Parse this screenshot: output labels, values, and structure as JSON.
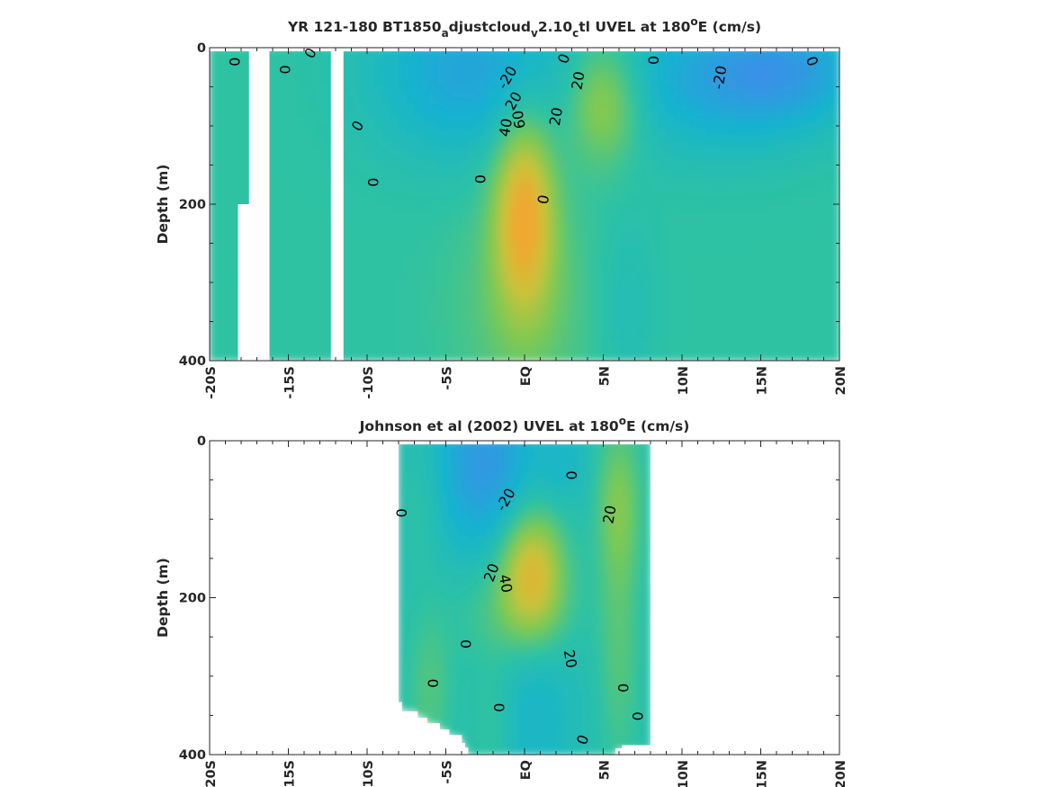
{
  "chart_data": [
    {
      "type": "heatmap",
      "title_parts": [
        {
          "text": "YR 121-180 BT1850",
          "shift": "none"
        },
        {
          "text": "a",
          "shift": "sub"
        },
        {
          "text": "djustcloud",
          "shift": "none"
        },
        {
          "text": "v",
          "shift": "sub"
        },
        {
          "text": "2.10",
          "shift": "none"
        },
        {
          "text": "c",
          "shift": "sub"
        },
        {
          "text": "tl UVEL at 180",
          "shift": "none"
        },
        {
          "text": "o",
          "shift": "super"
        },
        {
          "text": "E (cm/s)",
          "shift": "none"
        }
      ],
      "xlabel": "",
      "ylabel": "Depth (m)",
      "xlim": [
        -20,
        20
      ],
      "ylim": [
        0,
        400
      ],
      "y_reversed": true,
      "x_ticks": [
        -20,
        -15,
        -10,
        -5,
        0,
        5,
        10,
        15,
        20
      ],
      "x_tick_labels": [
        "-20S",
        "-15S",
        "-10S",
        "-5S",
        "EQ",
        "5N",
        "10N",
        "15N",
        "20N"
      ],
      "y_ticks": [
        0,
        200,
        400
      ],
      "y_tick_labels": [
        "0",
        "200",
        "400"
      ],
      "colormap": [
        "#3a8fe8",
        "#16b3cf",
        "#2ec2a3",
        "#7cc954",
        "#c8c33a",
        "#f0a830"
      ],
      "color_range": [
        -40,
        60
      ],
      "fields": {
        "background": 0,
        "features": [
          {
            "kind": "westward_jet",
            "x": -3.5,
            "y": 30,
            "sx": 4.5,
            "sy": 80,
            "value": -28
          },
          {
            "kind": "westward_jet",
            "x": 12,
            "y": 40,
            "sx": 5,
            "sy": 70,
            "value": -24
          },
          {
            "kind": "westward_jet",
            "x": 17,
            "y": 30,
            "sx": 3.5,
            "sy": 50,
            "value": -22
          },
          {
            "kind": "undercurrent",
            "x": 0,
            "y": 210,
            "sx": 1.3,
            "sy": 85,
            "value": 58
          },
          {
            "kind": "ncc",
            "x": 5,
            "y": 70,
            "sx": 1.6,
            "sy": 55,
            "value": 34
          },
          {
            "kind": "subsurface_east",
            "x": 0,
            "y": 330,
            "sx": 3,
            "sy": 100,
            "value": 14
          },
          {
            "kind": "subsurface_west",
            "x": 6.5,
            "y": 330,
            "sx": 1.4,
            "sy": 80,
            "value": -9
          }
        ],
        "masks": [
          {
            "x0": -17.5,
            "x1": -16.2,
            "y0": 0,
            "y1": 400
          },
          {
            "x0": -18.2,
            "x1": -16.2,
            "y0": 200,
            "y1": 400
          },
          {
            "x0": -12.3,
            "x1": -11.5,
            "y0": 0,
            "y1": 400
          },
          {
            "x0": -20.1,
            "x1": -20.0,
            "y0": 0,
            "y1": 400
          }
        ],
        "domain": {
          "x0": -20,
          "x1": 20,
          "bottom": 400
        }
      },
      "contour_labels": [
        {
          "text": "0",
          "x": -18.4,
          "y": 18,
          "rot": -90
        },
        {
          "text": "0",
          "x": -15.2,
          "y": 28,
          "rot": -90
        },
        {
          "text": "0",
          "x": -13.6,
          "y": 7,
          "rot": -60
        },
        {
          "text": "-20",
          "x": -1.1,
          "y": 38,
          "rot": -60
        },
        {
          "text": "0",
          "x": 2.5,
          "y": 14,
          "rot": -70
        },
        {
          "text": "20",
          "x": 3.4,
          "y": 42,
          "rot": -80
        },
        {
          "text": "0",
          "x": 8.2,
          "y": 16,
          "rot": -90
        },
        {
          "text": "-20",
          "x": 12.4,
          "y": 38,
          "rot": -80
        },
        {
          "text": "0",
          "x": 18.3,
          "y": 17,
          "rot": -110
        },
        {
          "text": "20",
          "x": -0.7,
          "y": 68,
          "rot": -60
        },
        {
          "text": "20",
          "x": 2.0,
          "y": 88,
          "rot": -80
        },
        {
          "text": "09",
          "x": -0.4,
          "y": 92,
          "rot": 80
        },
        {
          "text": "40",
          "x": -1.2,
          "y": 102,
          "rot": -80
        },
        {
          "text": "0",
          "x": -10.6,
          "y": 100,
          "rot": -60
        },
        {
          "text": "0",
          "x": -9.6,
          "y": 172,
          "rot": -90
        },
        {
          "text": "0",
          "x": -2.8,
          "y": 168,
          "rot": -90
        },
        {
          "text": "0",
          "x": 1.2,
          "y": 194,
          "rot": -80
        }
      ]
    },
    {
      "type": "heatmap",
      "title_parts": [
        {
          "text": "Johnson et al (2002) UVEL at 180",
          "shift": "none"
        },
        {
          "text": "o",
          "shift": "super"
        },
        {
          "text": "E (cm/s)",
          "shift": "none"
        }
      ],
      "xlabel": "",
      "ylabel": "Depth (m)",
      "xlim": [
        -20,
        20
      ],
      "ylim": [
        0,
        400
      ],
      "y_reversed": true,
      "x_ticks": [
        -20,
        -15,
        -10,
        -5,
        0,
        5,
        10,
        15,
        20
      ],
      "x_tick_labels": [
        "-20S",
        "-15S",
        "-10S",
        "-5S",
        "EQ",
        "5N",
        "10N",
        "15N",
        "20N"
      ],
      "y_ticks": [
        0,
        200,
        400
      ],
      "y_tick_labels": [
        "0",
        "200",
        "400"
      ],
      "colormap": [
        "#3a8fe8",
        "#16b3cf",
        "#2ec2a3",
        "#7cc954",
        "#c8c33a",
        "#f0a830"
      ],
      "color_range": [
        -40,
        60
      ],
      "fields": {
        "background": -5,
        "features": [
          {
            "kind": "westward_jet",
            "x": -2.5,
            "y": 30,
            "sx": 2.2,
            "sy": 80,
            "value": -30
          },
          {
            "kind": "westward_jet",
            "x": 2.5,
            "y": 30,
            "sx": 1.2,
            "sy": 40,
            "value": -10
          },
          {
            "kind": "undercurrent",
            "x": 0.5,
            "y": 165,
            "sx": 1.4,
            "sy": 55,
            "value": 52
          },
          {
            "kind": "undercurrent",
            "x": -0.5,
            "y": 220,
            "sx": 2.5,
            "sy": 45,
            "value": 16
          },
          {
            "kind": "ncc",
            "x": 6.0,
            "y": 80,
            "sx": 1.0,
            "sy": 70,
            "value": 24
          },
          {
            "kind": "scc",
            "x": -6.5,
            "y": 80,
            "sx": 0.9,
            "sy": 60,
            "value": 6
          },
          {
            "kind": "subsurface_east",
            "x": -6.0,
            "y": 320,
            "sx": 1.0,
            "sy": 70,
            "value": 14
          },
          {
            "kind": "subsurface_east",
            "x": 6.0,
            "y": 270,
            "sx": 0.9,
            "sy": 110,
            "value": 15
          },
          {
            "kind": "subsurface_east",
            "x": -2.0,
            "y": 360,
            "sx": 1.0,
            "sy": 60,
            "value": 10
          },
          {
            "kind": "subsurface_west",
            "x": 0.5,
            "y": 340,
            "sx": 2.0,
            "sy": 100,
            "value": -12
          }
        ],
        "masks": [],
        "domain": {
          "x0": -8,
          "x1": 8,
          "bottom": 400
        },
        "bottom_edge": [
          [
            -8.0,
            333
          ],
          [
            -7.8,
            345
          ],
          [
            -6.8,
            353
          ],
          [
            -6.2,
            360
          ],
          [
            -5.4,
            368
          ],
          [
            -4.8,
            375
          ],
          [
            -4.0,
            385
          ],
          [
            -3.7,
            391
          ],
          [
            -3.6,
            400
          ],
          [
            5.3,
            400
          ],
          [
            5.8,
            392
          ],
          [
            6.3,
            388
          ],
          [
            8.0,
            385
          ]
        ]
      },
      "contour_labels": [
        {
          "text": "0",
          "x": -7.8,
          "y": 92,
          "rot": -90
        },
        {
          "text": "-20",
          "x": -1.2,
          "y": 75,
          "rot": -60
        },
        {
          "text": "0",
          "x": 3.0,
          "y": 44,
          "rot": -90
        },
        {
          "text": "20",
          "x": 5.4,
          "y": 94,
          "rot": -80
        },
        {
          "text": "20",
          "x": -2.1,
          "y": 168,
          "rot": -70
        },
        {
          "text": "40",
          "x": -1.2,
          "y": 182,
          "rot": 80
        },
        {
          "text": "0",
          "x": -3.7,
          "y": 259,
          "rot": -90
        },
        {
          "text": "20",
          "x": 2.9,
          "y": 278,
          "rot": 80
        },
        {
          "text": "0",
          "x": -5.8,
          "y": 309,
          "rot": -90
        },
        {
          "text": "0",
          "x": 6.3,
          "y": 315,
          "rot": -90
        },
        {
          "text": "0",
          "x": -1.6,
          "y": 340,
          "rot": -90
        },
        {
          "text": "0",
          "x": 7.2,
          "y": 351,
          "rot": -90
        },
        {
          "text": "0",
          "x": 3.7,
          "y": 381,
          "rot": -70
        }
      ]
    }
  ]
}
